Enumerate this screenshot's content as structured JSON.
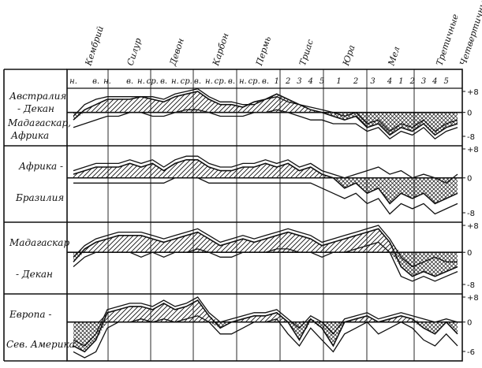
{
  "chart_data": {
    "type": "area",
    "title": "",
    "ylabel": "",
    "colors": {
      "ink": "#111111",
      "positive_fill": "hatch-diagonal",
      "negative_fill": "hatch-cross"
    },
    "periods": [
      "Кембрий",
      "Силур",
      "Девон",
      "Карбон",
      "Пермь",
      "Триас",
      "Юра",
      "Мел",
      "Третичные",
      "Четвертичные"
    ],
    "substages": [
      {
        "label": "н.",
        "x": 1
      },
      {
        "label": "в.",
        "x": 3
      },
      {
        "label": "н.",
        "x": 4
      },
      {
        "label": "в.",
        "x": 6
      },
      {
        "label": "н.",
        "x": 7
      },
      {
        "label": "ср.",
        "x": 8
      },
      {
        "label": "в.",
        "x": 9
      },
      {
        "label": "н.",
        "x": 10
      },
      {
        "label": "ср.",
        "x": 11
      },
      {
        "label": "в.",
        "x": 12
      },
      {
        "label": "н.",
        "x": 13
      },
      {
        "label": "ср.",
        "x": 14
      },
      {
        "label": "в.",
        "x": 15
      },
      {
        "label": "н.",
        "x": 16
      },
      {
        "label": "ср.",
        "x": 17
      },
      {
        "label": "в.",
        "x": 18
      },
      {
        "label": "1",
        "x": 19
      },
      {
        "label": "2",
        "x": 20
      },
      {
        "label": "3",
        "x": 21
      },
      {
        "label": "4",
        "x": 22
      },
      {
        "label": "5",
        "x": 23
      },
      {
        "label": "1",
        "x": 24.5
      },
      {
        "label": "2",
        "x": 26
      },
      {
        "label": "3",
        "x": 27.5
      },
      {
        "label": "4",
        "x": 29
      },
      {
        "label": "1",
        "x": 30
      },
      {
        "label": "2",
        "x": 31
      },
      {
        "label": "3",
        "x": 32
      },
      {
        "label": "4",
        "x": 33
      },
      {
        "label": "5",
        "x": 34
      }
    ],
    "x": [
      1,
      2,
      3,
      4,
      5,
      6,
      7,
      8,
      9,
      10,
      11,
      12,
      13,
      14,
      15,
      16,
      17,
      18,
      19,
      20,
      21,
      22,
      23,
      24,
      25,
      26,
      27,
      28,
      29,
      30,
      31,
      32,
      33,
      34,
      35
    ],
    "panels": [
      {
        "name": "australia-deccan",
        "label_top": "Австралия",
        "label_mid": "- Декан",
        "label_bottom": "Мадагаскар, Африка",
        "y_ticks": [
          "+8",
          "0",
          "-8"
        ],
        "ylim": [
          -8,
          8
        ],
        "series": [
          {
            "values": [
              -1,
              3,
              5,
              6,
              6,
              6,
              6,
              6,
              5,
              7,
              8,
              9,
              6,
              4,
              4,
              3,
              3,
              5,
              6,
              4,
              3,
              2,
              1,
              0,
              -1,
              0,
              -3,
              -2,
              -5,
              -3,
              -4,
              -2,
              -5,
              -3,
              -2
            ]
          },
          {
            "values": [
              -2,
              1,
              3,
              5,
              5,
              5,
              6,
              5,
              4,
              6,
              7,
              8,
              5,
              3,
              3,
              2,
              4,
              5,
              7,
              5,
              3,
              1,
              0,
              -1,
              -2,
              -1,
              -4,
              -3,
              -6,
              -4,
              -5,
              -3,
              -6,
              -4,
              -3
            ]
          },
          {
            "values": [
              -4,
              -3,
              -2,
              -1,
              -1,
              0,
              0,
              -1,
              -1,
              0,
              1,
              1,
              0,
              -1,
              -1,
              -1,
              0,
              0,
              1,
              0,
              -1,
              -2,
              -2,
              -3,
              -3,
              -3,
              -5,
              -4,
              -7,
              -5,
              -6,
              -4,
              -7,
              -5,
              -4
            ]
          }
        ]
      },
      {
        "name": "africa-brazil",
        "label_top": "Африка -",
        "label_bottom": "Бразилия",
        "y_ticks": [
          "+8",
          "0",
          "-8"
        ],
        "ylim": [
          -8,
          8
        ],
        "series": [
          {
            "values": [
              2,
              3,
              4,
              4,
              4,
              5,
              4,
              5,
              3,
              5,
              6,
              6,
              4,
              3,
              3,
              4,
              4,
              5,
              4,
              5,
              3,
              4,
              2,
              1,
              0,
              1,
              2,
              3,
              1,
              2,
              0,
              1,
              0,
              -1,
              1
            ]
          },
          {
            "values": [
              1,
              2,
              3,
              3,
              3,
              4,
              3,
              4,
              2,
              4,
              5,
              5,
              3,
              2,
              2,
              3,
              3,
              4,
              3,
              4,
              2,
              3,
              1,
              0,
              -2,
              -1,
              -3,
              -2,
              -5,
              -3,
              -4,
              -3,
              -5,
              -4,
              -3
            ]
          },
          {
            "values": [
              -1,
              -1,
              -1,
              -1,
              -1,
              -1,
              -1,
              -1,
              -1,
              0,
              0,
              0,
              -1,
              -1,
              -1,
              -1,
              -1,
              -1,
              -1,
              -1,
              -1,
              -1,
              -2,
              -3,
              -4,
              -3,
              -5,
              -4,
              -7,
              -5,
              -6,
              -5,
              -7,
              -6,
              -5
            ]
          }
        ]
      },
      {
        "name": "madagascar-deccan",
        "label_top": "Мадагаскар",
        "label_bottom": "- Декан",
        "y_ticks": [
          "+8",
          "0",
          "-8"
        ],
        "ylim": [
          -8,
          8
        ],
        "series": [
          {
            "values": [
              -1,
              2,
              4,
              5,
              6,
              6,
              6,
              5,
              4,
              5,
              6,
              7,
              5,
              3,
              4,
              5,
              4,
              5,
              6,
              7,
              6,
              5,
              3,
              4,
              5,
              6,
              7,
              8,
              4,
              -1,
              -3,
              -2,
              -1,
              -2,
              -2
            ]
          },
          {
            "values": [
              -2,
              1,
              3,
              4,
              5,
              5,
              5,
              4,
              3,
              4,
              5,
              6,
              4,
              2,
              3,
              4,
              3,
              4,
              5,
              6,
              5,
              4,
              2,
              3,
              4,
              5,
              6,
              7,
              3,
              -3,
              -5,
              -4,
              -5,
              -4,
              -3
            ]
          },
          {
            "values": [
              -3,
              -1,
              0,
              0,
              0,
              0,
              -1,
              0,
              -1,
              0,
              0,
              1,
              0,
              -1,
              -1,
              0,
              0,
              0,
              1,
              1,
              0,
              0,
              -1,
              0,
              0,
              1,
              2,
              3,
              0,
              -5,
              -6,
              -5,
              -6,
              -5,
              -4
            ]
          }
        ]
      },
      {
        "name": "europe-north-america",
        "label_top": "Европа -",
        "label_bottom": "Сев. Америка",
        "y_ticks": [
          "+8",
          "0",
          "-6"
        ],
        "ylim": [
          -6,
          8
        ],
        "series": [
          {
            "values": [
              -3,
              -4,
              -2,
              4,
              5,
              6,
              6,
              5,
              7,
              5,
              6,
              8,
              3,
              0,
              1,
              2,
              3,
              3,
              4,
              1,
              -1,
              2,
              0,
              -2,
              1,
              2,
              3,
              1,
              2,
              3,
              2,
              1,
              0,
              1,
              0
            ]
          },
          {
            "values": [
              -4,
              -5,
              -3,
              3,
              4,
              5,
              5,
              4,
              6,
              4,
              5,
              7,
              2,
              -1,
              0,
              1,
              2,
              2,
              3,
              0,
              -3,
              1,
              -1,
              -4,
              0,
              1,
              2,
              0,
              1,
              2,
              1,
              -1,
              -2,
              0,
              -2
            ]
          },
          {
            "values": [
              -5,
              -6,
              -5,
              -1,
              0,
              0,
              1,
              0,
              1,
              0,
              1,
              2,
              0,
              -2,
              -2,
              -1,
              0,
              0,
              1,
              -2,
              -4,
              -1,
              -3,
              -5,
              -2,
              -1,
              0,
              -2,
              -1,
              0,
              -1,
              -3,
              -4,
              -2,
              -4
            ]
          }
        ]
      }
    ]
  }
}
